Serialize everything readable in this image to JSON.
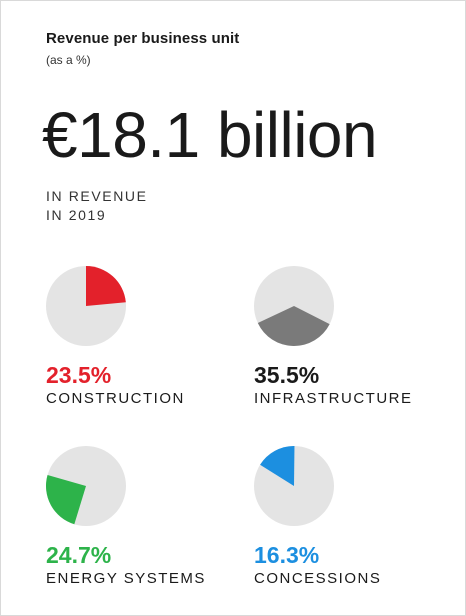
{
  "header": {
    "title": "Revenue per business unit",
    "subtitle": "(as a %)",
    "total": "€18.1 billion",
    "caption_line1": "IN REVENUE",
    "caption_line2": "IN 2019"
  },
  "chart_data": {
    "type": "pie",
    "title": "Revenue per business unit",
    "subtitle": "(as a %)",
    "unit": "%",
    "background_color": "#e4e4e4",
    "slices": [
      {
        "name": "CONSTRUCTION",
        "value": 23.5,
        "label": "23.5%",
        "color": "#e3212b"
      },
      {
        "name": "INFRASTRUCTURE",
        "value": 35.5,
        "label": "35.5%",
        "color": "#7a7a7a",
        "text_color": "#1a1a1a"
      },
      {
        "name": "ENERGY SYSTEMS",
        "value": 24.7,
        "label": "24.7%",
        "color": "#2db34a"
      },
      {
        "name": "CONCESSIONS",
        "value": 16.3,
        "label": "16.3%",
        "color": "#1c8fe0"
      }
    ]
  }
}
